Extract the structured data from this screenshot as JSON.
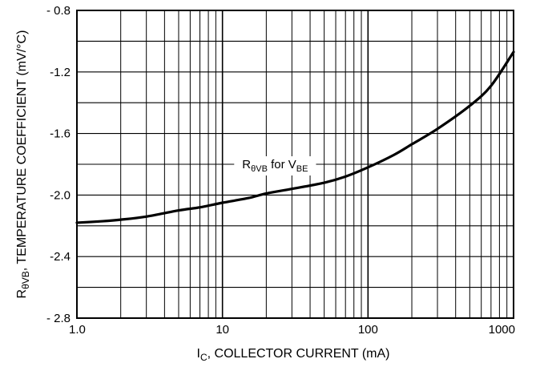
{
  "chart_data": {
    "type": "line",
    "xscale": "log",
    "xlim": [
      1,
      1000
    ],
    "ylim": [
      -2.8,
      -0.8
    ],
    "grid": true,
    "x_ticks": [
      {
        "value": 1,
        "label": "1.0"
      },
      {
        "value": 10,
        "label": "10"
      },
      {
        "value": 100,
        "label": "100"
      },
      {
        "value": 1000,
        "label": "1000"
      }
    ],
    "y_ticks": [
      {
        "value": -0.8,
        "label": "- 0.8"
      },
      {
        "value": -1.2,
        "label": "-1.2"
      },
      {
        "value": -1.6,
        "label": "-1.6"
      },
      {
        "value": -2.0,
        "label": "-2.0"
      },
      {
        "value": -2.4,
        "label": "-2.4"
      },
      {
        "value": -2.8,
        "label": "- 2.8"
      }
    ],
    "xlabel": {
      "main": "I",
      "sub": "C",
      "rest": ", COLLECTOR CURRENT (mA)"
    },
    "ylabel": {
      "main": "R",
      "sub": "θVB",
      "rest": ", TEMPERATURE COEFFICIENT (mV/°C)"
    },
    "annotation": {
      "r": "R",
      "r_sub": "θVB",
      "mid": " for V",
      "v_sub": "BE",
      "x": 23,
      "y": -1.8
    },
    "series": [
      {
        "x": [
          1,
          1.5,
          2,
          3,
          5,
          7,
          10,
          15,
          20,
          30,
          50,
          70,
          100,
          150,
          200,
          300,
          500,
          700,
          1000
        ],
        "values": [
          -2.18,
          -2.17,
          -2.16,
          -2.14,
          -2.1,
          -2.08,
          -2.05,
          -2.02,
          -1.99,
          -1.96,
          -1.92,
          -1.88,
          -1.82,
          -1.74,
          -1.67,
          -1.57,
          -1.42,
          -1.29,
          -1.07
        ]
      }
    ]
  }
}
